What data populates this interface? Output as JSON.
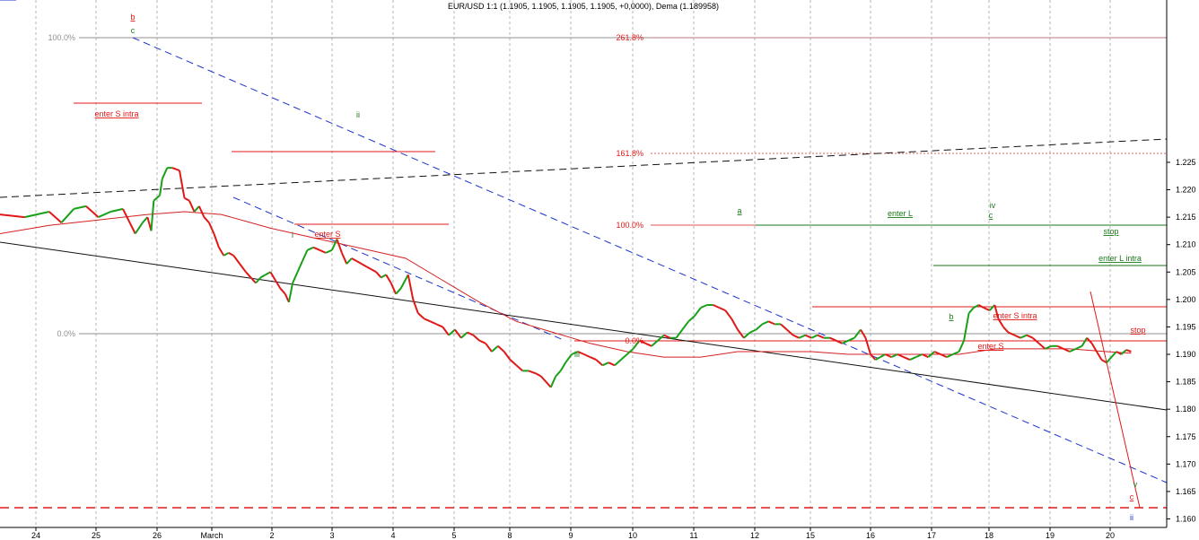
{
  "chart_data": {
    "type": "line",
    "title": "EUR/USD 1:1 (1.1905, 1.1905, 1.1905, 1.1905, +0,0000), Dema (1.189958)",
    "xlabel": "",
    "ylabel": "",
    "ylim": [
      1.1585,
      1.2285
    ],
    "y_ticks": [
      "1.160",
      "1.165",
      "1.170",
      "1.175",
      "1.180",
      "1.185",
      "1.190",
      "1.195",
      "1.200",
      "1.205",
      "1.210",
      "1.215",
      "1.220",
      "1.225"
    ],
    "x_tick_labels": [
      "24",
      "25",
      "26",
      "March",
      "2",
      "3",
      "4",
      "5",
      "8",
      "9",
      "10",
      "11",
      "12",
      "15",
      "16",
      "17",
      "18",
      "19",
      "20"
    ],
    "grid": "vertical dashed",
    "colors": {
      "up": "#18a018",
      "down": "#e01818",
      "dema": "#d42020",
      "fib": "#ff6060",
      "trend_blue": "#1a33cc",
      "trend_black": "#111111",
      "level_green": "#1a7a1a",
      "level_red": "#e01818"
    },
    "series": [
      {
        "name": "EUR/USD",
        "points": [
          [
            0,
            1.2155
          ],
          [
            2,
            1.215
          ],
          [
            4,
            1.216
          ],
          [
            5,
            1.214
          ],
          [
            6,
            1.2165
          ],
          [
            7,
            1.217
          ],
          [
            8,
            1.215
          ],
          [
            9,
            1.216
          ],
          [
            10,
            1.2165
          ],
          [
            11,
            1.212
          ],
          [
            11.6,
            1.214
          ],
          [
            12,
            1.215
          ],
          [
            12.3,
            1.2125
          ],
          [
            12.5,
            1.218
          ],
          [
            13,
            1.219
          ],
          [
            13.2,
            1.222
          ],
          [
            13.6,
            1.224
          ],
          [
            14,
            1.224
          ],
          [
            14.6,
            1.2235
          ],
          [
            15,
            1.2185
          ],
          [
            15.4,
            1.218
          ],
          [
            15.8,
            1.216
          ],
          [
            16.2,
            1.217
          ],
          [
            16.6,
            1.215
          ],
          [
            17,
            1.214
          ],
          [
            17.4,
            1.212
          ],
          [
            17.8,
            1.2095
          ],
          [
            18.2,
            1.208
          ],
          [
            18.6,
            1.2085
          ],
          [
            19,
            1.208
          ],
          [
            19.5,
            1.2065
          ],
          [
            20,
            1.205
          ],
          [
            20.4,
            1.204
          ],
          [
            20.8,
            1.203
          ],
          [
            21.2,
            1.204
          ],
          [
            21.6,
            1.2045
          ],
          [
            22,
            1.205
          ],
          [
            22.4,
            1.2035
          ],
          [
            22.8,
            1.202
          ],
          [
            23.2,
            1.201
          ],
          [
            23.5,
            1.1995
          ],
          [
            23.8,
            1.203
          ],
          [
            24.2,
            1.205
          ],
          [
            24.6,
            1.207
          ],
          [
            25,
            1.209
          ],
          [
            25.5,
            1.2095
          ],
          [
            26,
            1.209
          ],
          [
            26.5,
            1.2085
          ],
          [
            27,
            1.209
          ],
          [
            27.4,
            1.211
          ],
          [
            27.8,
            1.2085
          ],
          [
            28.2,
            1.2065
          ],
          [
            28.6,
            1.2075
          ],
          [
            29,
            1.207
          ],
          [
            29.4,
            1.2065
          ],
          [
            29.8,
            1.206
          ],
          [
            30.2,
            1.2055
          ],
          [
            30.6,
            1.205
          ],
          [
            31,
            1.204
          ],
          [
            31.4,
            1.2045
          ],
          [
            31.8,
            1.203
          ],
          [
            32.2,
            1.201
          ],
          [
            32.6,
            1.202
          ],
          [
            33.2,
            1.2045
          ],
          [
            33.6,
            1.2
          ],
          [
            34,
            1.1975
          ],
          [
            34.5,
            1.1965
          ],
          [
            35,
            1.196
          ],
          [
            35.5,
            1.1955
          ],
          [
            36,
            1.195
          ],
          [
            36.5,
            1.1935
          ],
          [
            37,
            1.1945
          ],
          [
            37.5,
            1.193
          ],
          [
            38,
            1.194
          ],
          [
            38.5,
            1.1935
          ],
          [
            39,
            1.1925
          ],
          [
            39.5,
            1.192
          ],
          [
            40,
            1.1905
          ],
          [
            40.5,
            1.1915
          ],
          [
            41,
            1.1905
          ],
          [
            41.5,
            1.189
          ],
          [
            42,
            1.188
          ],
          [
            42.5,
            1.187
          ],
          [
            43,
            1.187
          ],
          [
            43.6,
            1.1865
          ],
          [
            44,
            1.186
          ],
          [
            44.4,
            1.185
          ],
          [
            44.8,
            1.184
          ],
          [
            45.2,
            1.186
          ],
          [
            45.6,
            1.187
          ],
          [
            46,
            1.1885
          ],
          [
            46.5,
            1.19
          ],
          [
            47,
            1.1905
          ],
          [
            47.5,
            1.19
          ],
          [
            48,
            1.1895
          ],
          [
            48.5,
            1.189
          ],
          [
            49,
            1.188
          ],
          [
            49.5,
            1.1885
          ],
          [
            50,
            1.188
          ],
          [
            50.5,
            1.189
          ],
          [
            51,
            1.19
          ],
          [
            51.5,
            1.191
          ],
          [
            52,
            1.1925
          ],
          [
            52.5,
            1.192
          ],
          [
            53,
            1.1915
          ],
          [
            53.5,
            1.1925
          ],
          [
            54,
            1.1935
          ],
          [
            54.5,
            1.193
          ],
          [
            55,
            1.193
          ],
          [
            55.5,
            1.1945
          ],
          [
            56,
            1.196
          ],
          [
            56.5,
            1.197
          ],
          [
            57,
            1.1985
          ],
          [
            57.5,
            1.199
          ],
          [
            58,
            1.199
          ],
          [
            58.5,
            1.1985
          ],
          [
            59,
            1.198
          ],
          [
            59.5,
            1.1965
          ],
          [
            60,
            1.1945
          ],
          [
            60.5,
            1.193
          ],
          [
            61,
            1.194
          ],
          [
            61.5,
            1.1945
          ],
          [
            62,
            1.1955
          ],
          [
            62.5,
            1.196
          ],
          [
            63,
            1.1955
          ],
          [
            63.5,
            1.1955
          ],
          [
            64,
            1.1945
          ],
          [
            64.5,
            1.1935
          ],
          [
            65,
            1.193
          ],
          [
            65.5,
            1.1935
          ],
          [
            66,
            1.193
          ],
          [
            66.5,
            1.1935
          ],
          [
            67,
            1.193
          ],
          [
            67.5,
            1.193
          ],
          [
            68,
            1.1925
          ],
          [
            68.5,
            1.192
          ],
          [
            69,
            1.1925
          ],
          [
            69.5,
            1.193
          ],
          [
            70,
            1.1945
          ],
          [
            70.4,
            1.193
          ],
          [
            70.8,
            1.19
          ],
          [
            71.2,
            1.189
          ],
          [
            71.6,
            1.1895
          ],
          [
            72,
            1.19
          ],
          [
            72.5,
            1.1895
          ],
          [
            73,
            1.19
          ],
          [
            73.5,
            1.1895
          ],
          [
            74,
            1.189
          ],
          [
            74.5,
            1.1895
          ],
          [
            75,
            1.19
          ],
          [
            75.5,
            1.1895
          ],
          [
            76,
            1.1905
          ],
          [
            76.5,
            1.19
          ],
          [
            77,
            1.1895
          ],
          [
            77.5,
            1.19
          ],
          [
            78,
            1.1905
          ],
          [
            78.4,
            1.1925
          ],
          [
            78.8,
            1.1975
          ],
          [
            79.2,
            1.1985
          ],
          [
            79.6,
            1.199
          ],
          [
            80,
            1.1985
          ],
          [
            80.5,
            1.198
          ],
          [
            80.9,
            1.199
          ],
          [
            81.2,
            1.1965
          ],
          [
            81.6,
            1.195
          ],
          [
            82,
            1.194
          ],
          [
            82.5,
            1.1935
          ],
          [
            83,
            1.193
          ],
          [
            83.5,
            1.1935
          ],
          [
            84,
            1.193
          ],
          [
            84.5,
            1.192
          ],
          [
            85,
            1.191
          ],
          [
            85.5,
            1.1915
          ],
          [
            86,
            1.1915
          ],
          [
            86.5,
            1.191
          ],
          [
            87,
            1.1905
          ],
          [
            87.5,
            1.191
          ],
          [
            88,
            1.1915
          ],
          [
            88.4,
            1.193
          ],
          [
            88.8,
            1.192
          ],
          [
            89.2,
            1.1905
          ],
          [
            89.6,
            1.189
          ],
          [
            90,
            1.1885
          ],
          [
            90.4,
            1.1895
          ],
          [
            90.8,
            1.1905
          ],
          [
            91.2,
            1.19
          ],
          [
            91.6,
            1.1908
          ],
          [
            92,
            1.1905
          ]
        ]
      },
      {
        "name": "Dema",
        "points": [
          [
            0,
            1.212
          ],
          [
            4,
            1.2135
          ],
          [
            8,
            1.2145
          ],
          [
            12,
            1.2155
          ],
          [
            15,
            1.216
          ],
          [
            18,
            1.2155
          ],
          [
            22,
            1.213
          ],
          [
            26,
            1.211
          ],
          [
            30,
            1.209
          ],
          [
            33,
            1.2075
          ],
          [
            36,
            1.2035
          ],
          [
            39,
            1.1995
          ],
          [
            42,
            1.196
          ],
          [
            45,
            1.194
          ],
          [
            48,
            1.192
          ],
          [
            51,
            1.1905
          ],
          [
            54,
            1.1895
          ],
          [
            57,
            1.1895
          ],
          [
            60,
            1.1905
          ],
          [
            63,
            1.1905
          ],
          [
            66,
            1.1905
          ],
          [
            69,
            1.19
          ],
          [
            72,
            1.19
          ],
          [
            75,
            1.19
          ],
          [
            78,
            1.19
          ],
          [
            81,
            1.191
          ],
          [
            84,
            1.191
          ],
          [
            87,
            1.191
          ],
          [
            90,
            1.1905
          ],
          [
            92,
            1.1902
          ]
        ]
      }
    ],
    "labels": {
      "b_top": "b",
      "c_top": "c",
      "w1": "i",
      "w2": "ii",
      "w3": "iii",
      "w4": "iv",
      "w5": "v",
      "a": "a",
      "b_low": "b",
      "c_mid": "c",
      "c_end": "c",
      "ii_end": "ii",
      "pct100_left": "100.0%",
      "pct0_left": "0.0%",
      "pct261": "261.8%",
      "pct161": "161.8%",
      "pct100_right": "100.0%",
      "pct0_right": "0.0%",
      "enter_s_intra_left": "enter S intra",
      "enter_s_left": "enter S",
      "enter_l": "enter L",
      "stop_top": "stop",
      "enter_l_intra": "enter L intra",
      "enter_s_intra_right": "enter S intra",
      "stop_bottom": "stop",
      "enter_s_right": "enter S"
    }
  }
}
